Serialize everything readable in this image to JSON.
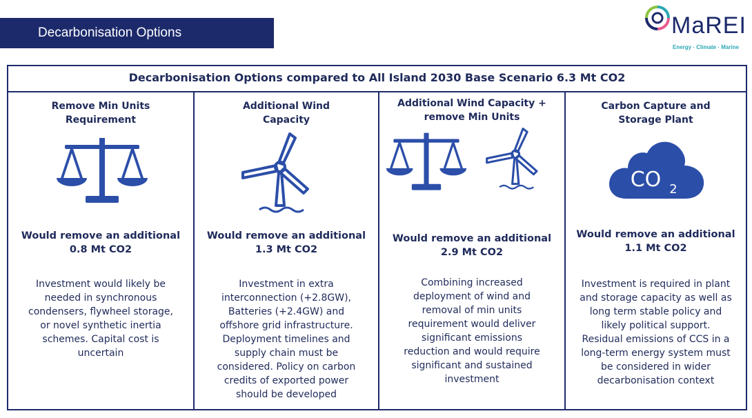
{
  "slide": {
    "title": "Decarbonisation Options"
  },
  "logo": {
    "name": "MaREI",
    "tagline": "Energy · Climate · Marine"
  },
  "panel": {
    "header": "Decarbonisation Options compared to All Island 2030 Base Scenario 6.3 Mt CO2"
  },
  "options": [
    {
      "title_lines": [
        "Remove Min Units",
        "Requirement"
      ],
      "icon": "scales-icon",
      "result_lines": [
        "Would remove an additional",
        "0.8 Mt CO2"
      ],
      "desc_lines": [
        "Investment would likely be",
        "needed in synchronous",
        "condensers, flywheel storage,",
        "or novel synthetic inertia",
        "schemes. Capital cost is",
        "uncertain"
      ]
    },
    {
      "title_lines": [
        "Additional Wind",
        "Capacity"
      ],
      "icon": "wind-turbine-icon",
      "result_lines": [
        "Would remove an additional",
        "1.3 Mt CO2"
      ],
      "desc_lines": [
        "Investment in extra",
        "interconnection (+2.8GW),",
        "Batteries (+2.4GW) and",
        "offshore grid infrastructure.",
        "Deployment timelines and",
        "supply chain must be",
        "considered. Policy on carbon",
        "credits of exported power",
        "should be developed"
      ]
    },
    {
      "title_lines": [
        "Additional Wind Capacity +",
        "remove Min Units"
      ],
      "icon": "scales-and-wind-turbine-icon",
      "result_lines": [
        "Would remove an additional",
        "2.9 Mt CO2"
      ],
      "desc_lines": [
        "Combining  increased",
        "deployment of wind and",
        "removal of min units",
        "requirement would deliver",
        "significant emissions",
        "reduction and would require",
        "significant and sustained",
        "investment"
      ]
    },
    {
      "title_lines": [
        "Carbon Capture and",
        "Storage Plant"
      ],
      "icon": "co2-cloud-icon",
      "icon_text": "CO",
      "icon_sub": "2",
      "result_lines": [
        "Would remove an additional",
        "1.1 Mt CO2"
      ],
      "desc_lines": [
        "Investment is required in plant",
        "and storage capacity as well as",
        "long term stable policy and",
        "likely political support.",
        "Residual emissions of CCS in a",
        "long-term energy system must",
        "be considered in wider",
        "decarbonisation context"
      ]
    }
  ],
  "colors": {
    "navy": "#1c2a6b",
    "icon_blue": "#2b4ea8",
    "accent_teal": "#2aa7b3"
  }
}
